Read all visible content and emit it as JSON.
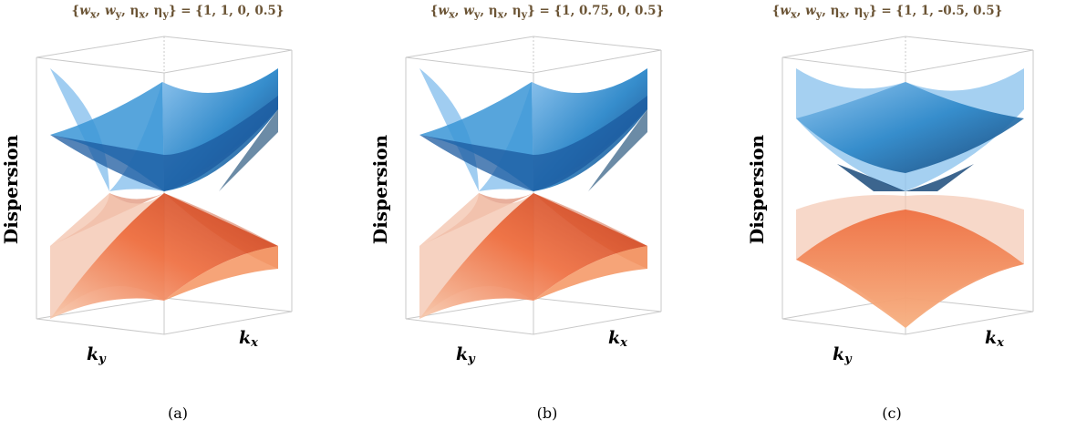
{
  "panels": [
    {
      "title_prefix": "{",
      "title_suffix": "} = {1, 1, 0, 0.5}",
      "caption": "(a)",
      "ylabel": "Dispersion",
      "xlabel": "k",
      "xlabel_sub": "x",
      "ylabel2": "k",
      "ylabel2_sub": "y"
    },
    {
      "title_prefix": "{",
      "title_suffix": "} = {1, 0.75, 0, 0.5}",
      "caption": "(b)",
      "ylabel": "Dispersion",
      "xlabel": "k",
      "xlabel_sub": "x",
      "ylabel2": "k",
      "ylabel2_sub": "y"
    },
    {
      "title_prefix": "{",
      "title_suffix": "} = {1, 1, -0.5, 0.5}",
      "caption": "(c)",
      "ylabel": "Dispersion",
      "xlabel": "k",
      "xlabel_sub": "x",
      "ylabel2": "k",
      "ylabel2_sub": "y"
    }
  ],
  "title_params": [
    "w",
    "x",
    "w",
    "y",
    "η",
    "x",
    "η",
    "y"
  ],
  "colors": {
    "upper_band": "#2a86c8",
    "lower_band": "#ee6a3a",
    "title": "#6b5435",
    "box": "#c9c9c9"
  }
}
